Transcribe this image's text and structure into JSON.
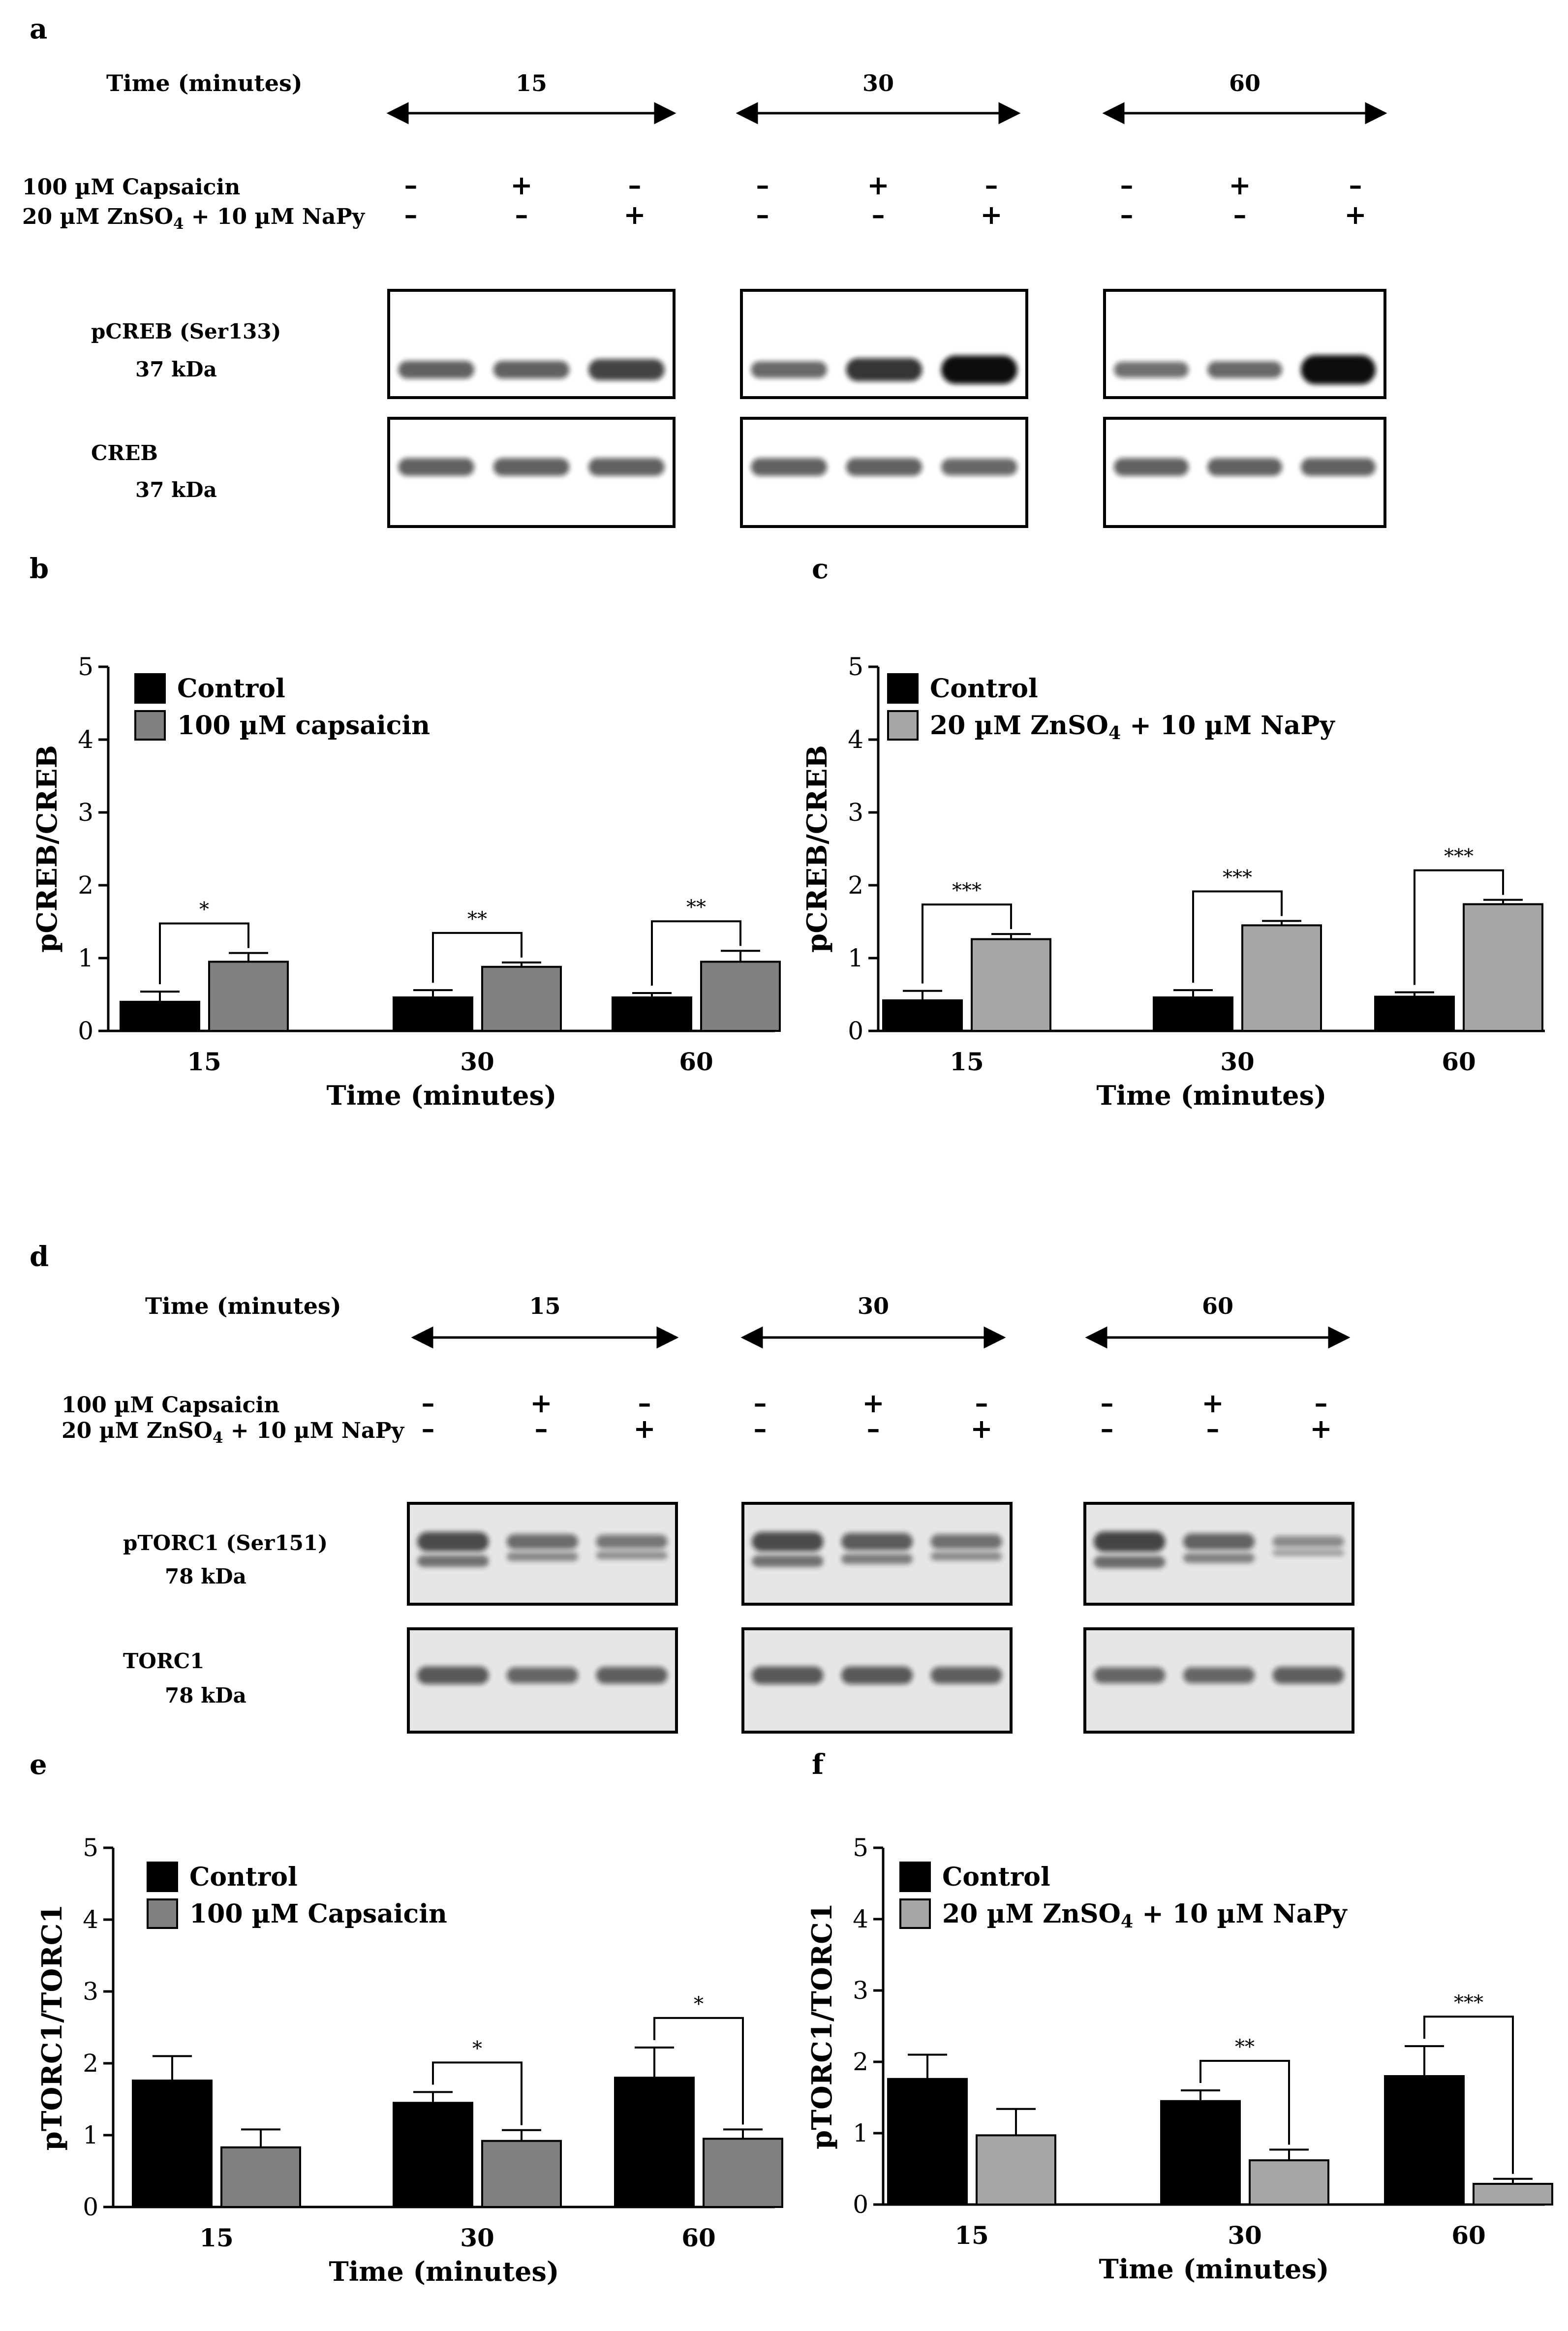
{
  "blots": [
    {
      "panel_letter": "a",
      "time_label": "Time (minutes)",
      "time_points": [
        "15",
        "30",
        "60"
      ],
      "treatment_rows": [
        {
          "label": "100 µM Capsaicin",
          "signs": [
            "–",
            "+",
            "–"
          ]
        },
        {
          "label": "20 µM ZnSO4 + 10 µM NaPy",
          "signs": [
            "–",
            "–",
            "+"
          ]
        }
      ],
      "bands": [
        {
          "name": "pCREB (Ser133)",
          "kda": "37 kDa"
        },
        {
          "name": "CREB",
          "kda": "37 kDa"
        }
      ]
    },
    {
      "panel_letter": "d",
      "time_label": "Time (minutes)",
      "time_points": [
        "15",
        "30",
        "60"
      ],
      "treatment_rows": [
        {
          "label": "100 µM Capsaicin",
          "signs": [
            "–",
            "+",
            "–"
          ]
        },
        {
          "label": "20 µM ZnSO4 + 10 µM NaPy",
          "signs": [
            "–",
            "–",
            "+"
          ]
        }
      ],
      "bands": [
        {
          "name": "pTORC1 (Ser151)",
          "kda": "78 kDa"
        },
        {
          "name": "TORC1",
          "kda": "78 kDa"
        }
      ]
    }
  ],
  "chart_data": [
    {
      "panel_letter": "b",
      "type": "bar",
      "categories": [
        "15",
        "30",
        "60"
      ],
      "xlabel": "Time (minutes)",
      "ylabel": "pCREB/CREB",
      "ylim": [
        0,
        5
      ],
      "yticks": [
        "0",
        "1",
        "2",
        "3",
        "4",
        "5"
      ],
      "legend_position": "top-left",
      "series": [
        {
          "name": "Control",
          "color": "#000000",
          "values": [
            0.4,
            0.46,
            0.46
          ],
          "errors": [
            0.14,
            0.1,
            0.06
          ]
        },
        {
          "name": "100 µM capsaicin",
          "color": "#808080",
          "values": [
            0.95,
            0.88,
            0.95
          ],
          "errors": [
            0.12,
            0.06,
            0.15
          ]
        }
      ],
      "significance": [
        "*",
        "**",
        "**"
      ]
    },
    {
      "panel_letter": "c",
      "type": "bar",
      "categories": [
        "15",
        "30",
        "60"
      ],
      "xlabel": "Time (minutes)",
      "ylabel": "pCREB/CREB",
      "ylim": [
        0,
        5
      ],
      "yticks": [
        "0",
        "1",
        "2",
        "3",
        "4",
        "5"
      ],
      "legend_position": "top-left",
      "series": [
        {
          "name": "Control",
          "color": "#000000",
          "values": [
            0.42,
            0.46,
            0.47
          ],
          "errors": [
            0.13,
            0.1,
            0.06
          ]
        },
        {
          "name": "20 µM ZnSO4 + 10 µM NaPy",
          "color": "#a6a6a6",
          "values": [
            1.26,
            1.45,
            1.74
          ],
          "errors": [
            0.07,
            0.06,
            0.06
          ]
        }
      ],
      "significance": [
        "***",
        "***",
        "***"
      ]
    },
    {
      "panel_letter": "e",
      "type": "bar",
      "categories": [
        "15",
        "30",
        "60"
      ],
      "xlabel": "Time (minutes)",
      "ylabel": "pTORC1/TORC1",
      "ylim": [
        0,
        5
      ],
      "yticks": [
        "0",
        "1",
        "2",
        "3",
        "4",
        "5"
      ],
      "legend_position": "top-left",
      "series": [
        {
          "name": "Control",
          "color": "#000000",
          "values": [
            1.76,
            1.45,
            1.8
          ],
          "errors": [
            0.34,
            0.15,
            0.42
          ]
        },
        {
          "name": "100 µM Capsaicin",
          "color": "#808080",
          "values": [
            0.83,
            0.92,
            0.95
          ],
          "errors": [
            0.25,
            0.15,
            0.13
          ]
        }
      ],
      "significance": [
        "",
        "*",
        "*"
      ]
    },
    {
      "panel_letter": "f",
      "type": "bar",
      "categories": [
        "15",
        "30",
        "60"
      ],
      "xlabel": "Time (minutes)",
      "ylabel": "pTORC1/TORC1",
      "ylim": [
        0,
        5
      ],
      "yticks": [
        "0",
        "1",
        "2",
        "3",
        "4",
        "5"
      ],
      "legend_position": "top-left",
      "series": [
        {
          "name": "Control",
          "color": "#000000",
          "values": [
            1.76,
            1.45,
            1.8
          ],
          "errors": [
            0.34,
            0.15,
            0.42
          ]
        },
        {
          "name": "20 µM ZnSO4 + 10 µM NaPy",
          "color": "#a6a6a6",
          "values": [
            0.97,
            0.62,
            0.29
          ],
          "errors": [
            0.37,
            0.15,
            0.07
          ]
        }
      ],
      "significance": [
        "",
        "**",
        "***"
      ]
    }
  ]
}
